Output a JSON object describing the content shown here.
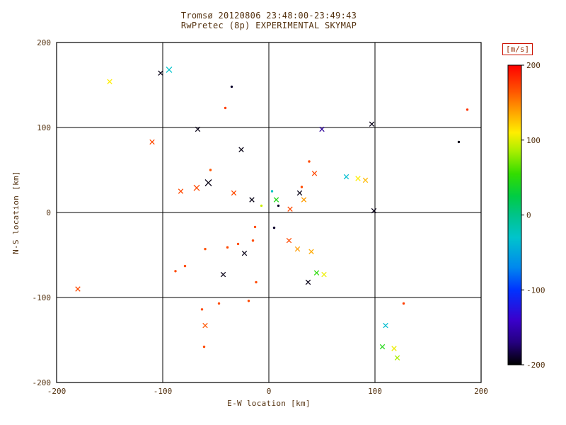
{
  "title": {
    "line1": "Tromsø 20120806 23:48:00-23:49:43",
    "line2": "RwPretec (8p) EXPERIMENTAL SKYMAP"
  },
  "colors": {
    "text": "#53310f",
    "axis": "#000000",
    "cbar_border": "#cc1100",
    "cbar_label_text": "#99330a",
    "background": "#ffffff"
  },
  "chart_data": {
    "type": "scatter",
    "title": "Tromsø 20120806 23:48:00-23:49:43",
    "subtitle": "RwPretec (8p) EXPERIMENTAL SKYMAP",
    "xlabel": "E-W location [km]",
    "ylabel": "N-S location [km]",
    "xlim": [
      -200,
      200
    ],
    "ylim": [
      -200,
      200
    ],
    "xticks": [
      -200,
      -100,
      0,
      100,
      200
    ],
    "yticks": [
      -200,
      -100,
      0,
      100,
      200
    ],
    "grid": true,
    "legend_position": "none",
    "colorbar": {
      "label": "[m/s]",
      "units": "m/s",
      "min": -200,
      "max": 200,
      "ticks": [
        200,
        100,
        0,
        -100,
        -200
      ],
      "stops": [
        {
          "v": -200,
          "c": "#000000"
        },
        {
          "v": -170,
          "c": "#250080"
        },
        {
          "v": -140,
          "c": "#3a00cc"
        },
        {
          "v": -100,
          "c": "#0033ff"
        },
        {
          "v": -70,
          "c": "#0088ee"
        },
        {
          "v": -30,
          "c": "#00c4cc"
        },
        {
          "v": 0,
          "c": "#00c489"
        },
        {
          "v": 25,
          "c": "#00cc44"
        },
        {
          "v": 55,
          "c": "#33dd00"
        },
        {
          "v": 85,
          "c": "#a8ee00"
        },
        {
          "v": 110,
          "c": "#ffee00"
        },
        {
          "v": 135,
          "c": "#ffaa00"
        },
        {
          "v": 165,
          "c": "#ff5500"
        },
        {
          "v": 200,
          "c": "#ff0000"
        }
      ]
    },
    "points": [
      {
        "x": -150,
        "y": 154,
        "v": 110,
        "m": "x"
      },
      {
        "x": -102,
        "y": 164,
        "v": -195,
        "m": "x"
      },
      {
        "x": -94,
        "y": 168,
        "v": -30,
        "m": "x",
        "s": 8
      },
      {
        "x": -110,
        "y": 83,
        "v": 170,
        "m": "x"
      },
      {
        "x": -67,
        "y": 98,
        "v": -195,
        "m": "x"
      },
      {
        "x": -41,
        "y": 123,
        "v": 175,
        "m": "dot"
      },
      {
        "x": -26,
        "y": 74,
        "v": -195,
        "m": "x"
      },
      {
        "x": -83,
        "y": 25,
        "v": 170,
        "m": "x"
      },
      {
        "x": -68,
        "y": 29,
        "v": 170,
        "m": "x",
        "s": 8
      },
      {
        "x": -57,
        "y": 35,
        "v": -195,
        "m": "x",
        "s": 9
      },
      {
        "x": -55,
        "y": 50,
        "v": 165,
        "m": "dot"
      },
      {
        "x": -33,
        "y": 23,
        "v": 170,
        "m": "x"
      },
      {
        "x": -16,
        "y": 15,
        "v": -195,
        "m": "x"
      },
      {
        "x": -7,
        "y": 8,
        "v": 95,
        "m": "dot"
      },
      {
        "x": 3,
        "y": 25,
        "v": -25,
        "m": "dot"
      },
      {
        "x": 7,
        "y": 15,
        "v": 45,
        "m": "x"
      },
      {
        "x": 9,
        "y": 8,
        "v": -190,
        "m": "dot"
      },
      {
        "x": 20,
        "y": 4,
        "v": 170,
        "m": "x"
      },
      {
        "x": 33,
        "y": 15,
        "v": 140,
        "m": "x"
      },
      {
        "x": 31,
        "y": 30,
        "v": 170,
        "m": "dot"
      },
      {
        "x": 29,
        "y": 23,
        "v": -195,
        "m": "x"
      },
      {
        "x": 43,
        "y": 46,
        "v": 170,
        "m": "x"
      },
      {
        "x": 38,
        "y": 60,
        "v": 170,
        "m": "dot"
      },
      {
        "x": 73,
        "y": 42,
        "v": -35,
        "m": "x"
      },
      {
        "x": 84,
        "y": 40,
        "v": 110,
        "m": "x"
      },
      {
        "x": 91,
        "y": 38,
        "v": 130,
        "m": "x"
      },
      {
        "x": 50,
        "y": 98,
        "v": -160,
        "m": "x"
      },
      {
        "x": 97,
        "y": 104,
        "v": -195,
        "m": "x"
      },
      {
        "x": -35,
        "y": 148,
        "v": -190,
        "m": "dot"
      },
      {
        "x": -180,
        "y": -90,
        "v": 170,
        "m": "x"
      },
      {
        "x": -88,
        "y": -69,
        "v": 170,
        "m": "dot"
      },
      {
        "x": -79,
        "y": -63,
        "v": 170,
        "m": "dot"
      },
      {
        "x": -60,
        "y": -43,
        "v": 165,
        "m": "dot"
      },
      {
        "x": -43,
        "y": -73,
        "v": -195,
        "m": "x"
      },
      {
        "x": -39,
        "y": -41,
        "v": 170,
        "m": "dot"
      },
      {
        "x": -29,
        "y": -37,
        "v": 170,
        "m": "dot"
      },
      {
        "x": -23,
        "y": -48,
        "v": -195,
        "m": "x"
      },
      {
        "x": -15,
        "y": -33,
        "v": 170,
        "m": "dot"
      },
      {
        "x": -13,
        "y": -17,
        "v": 170,
        "m": "dot"
      },
      {
        "x": 5,
        "y": -18,
        "v": -190,
        "m": "dot"
      },
      {
        "x": 19,
        "y": -33,
        "v": 170,
        "m": "x"
      },
      {
        "x": 27,
        "y": -43,
        "v": 140,
        "m": "x"
      },
      {
        "x": 40,
        "y": -46,
        "v": 135,
        "m": "x"
      },
      {
        "x": 45,
        "y": -71,
        "v": 50,
        "m": "x"
      },
      {
        "x": 52,
        "y": -73,
        "v": 105,
        "m": "x"
      },
      {
        "x": 37,
        "y": -82,
        "v": -195,
        "m": "x"
      },
      {
        "x": -19,
        "y": -104,
        "v": 170,
        "m": "dot"
      },
      {
        "x": -47,
        "y": -107,
        "v": 170,
        "m": "dot"
      },
      {
        "x": -63,
        "y": -114,
        "v": 170,
        "m": "dot"
      },
      {
        "x": -60,
        "y": -133,
        "v": 165,
        "m": "x"
      },
      {
        "x": -61,
        "y": -158,
        "v": 170,
        "m": "dot"
      },
      {
        "x": -12,
        "y": -82,
        "v": 170,
        "m": "dot"
      },
      {
        "x": 110,
        "y": -133,
        "v": -35,
        "m": "x"
      },
      {
        "x": 107,
        "y": -158,
        "v": 45,
        "m": "x"
      },
      {
        "x": 118,
        "y": -160,
        "v": 105,
        "m": "x"
      },
      {
        "x": 121,
        "y": -171,
        "v": 85,
        "m": "x"
      },
      {
        "x": 127,
        "y": -107,
        "v": 175,
        "m": "dot"
      },
      {
        "x": 187,
        "y": 121,
        "v": 180,
        "m": "dot"
      },
      {
        "x": 179,
        "y": 83,
        "v": -195,
        "m": "dot"
      },
      {
        "x": 99,
        "y": 2,
        "v": -195,
        "m": "x"
      }
    ]
  }
}
